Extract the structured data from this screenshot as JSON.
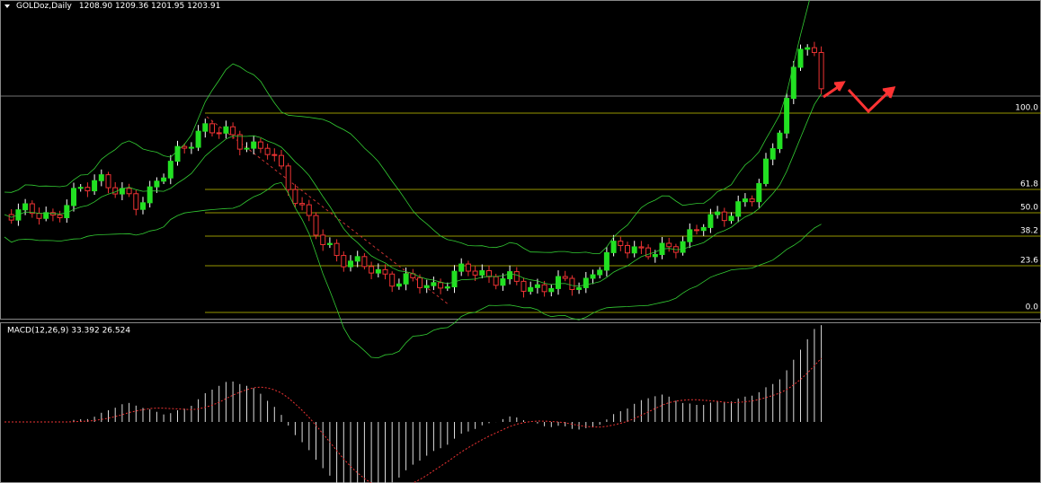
{
  "header": {
    "symbol": "GOLDoz,Daily",
    "ohlc": "1208.90 1209.36 1201.95 1203.91"
  },
  "fibonacci": {
    "levels": [
      "100.0",
      "61.8",
      "50.0",
      "38.2",
      "23.6",
      "0.0"
    ]
  },
  "macd": {
    "label": "MACD(12,26,9) 33.392 26.524"
  }
}
